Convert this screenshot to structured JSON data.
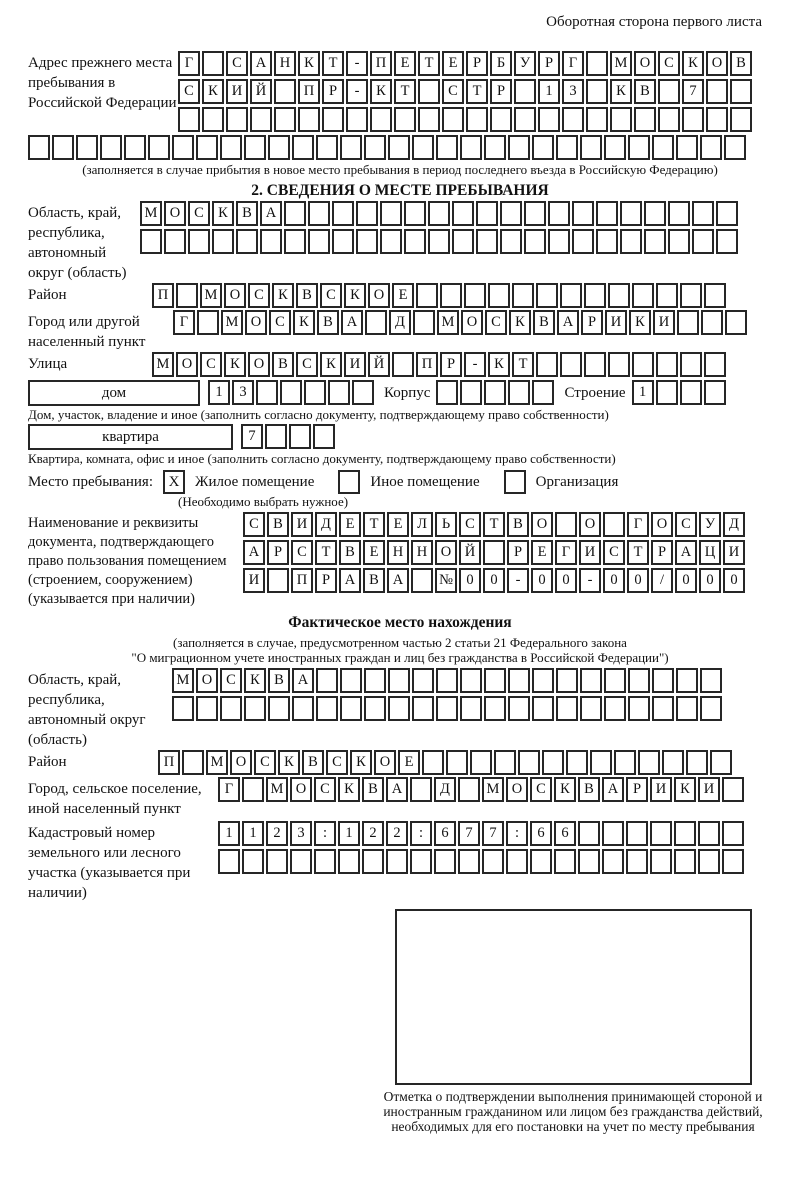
{
  "page": {
    "header_note": "Оборотная сторона первого листа"
  },
  "prev_address": {
    "label": "Адрес прежнего места пребывания в Российской Федерации",
    "rows": [
      {
        "text": "Г САНКТ-ПЕТЕРБУРГ МОСКОВ",
        "len": 24
      },
      {
        "text": "СКИЙ ПР-КТ СТР 13 КВ 7",
        "len": 24
      },
      {
        "text": "",
        "len": 24
      },
      {
        "text": "",
        "len": 30
      }
    ],
    "note": "(заполняется в случае прибытия в новое место пребывания в период последнего въезда в Российскую Федерацию)"
  },
  "section2": {
    "title": "2. СВЕДЕНИЯ О МЕСТЕ ПРЕБЫВАНИЯ",
    "oblast": {
      "label": "Область, край, республика, автономный округ (область)",
      "rows": [
        {
          "text": "МОСКВА",
          "len": 25
        },
        {
          "text": "",
          "len": 25
        }
      ]
    },
    "raion": {
      "label": "Район",
      "row": {
        "text": "П МОСКВСКОЕ",
        "len": 24
      }
    },
    "gorod": {
      "label": "Город или другой населенный пункт",
      "row": {
        "text": "Г МОСКВА Д МОСКВАРИКИ",
        "len": 24
      }
    },
    "ulitsa": {
      "label": "Улица",
      "row": {
        "text": "МОСКОВСКИЙ ПР-КТ",
        "len": 24
      }
    },
    "dom": {
      "box_label": "дом",
      "row": {
        "text": "13",
        "len": 7
      },
      "korpus_label": "Корпус",
      "korpus_row": {
        "text": "",
        "len": 5
      },
      "stroenie_label": "Строение",
      "stroenie_row": {
        "text": "1",
        "len": 4
      },
      "note": "Дом, участок, владение и иное (заполнить согласно документу, подтверждающему право собственности)"
    },
    "kvartira": {
      "box_label": "квартира",
      "row": {
        "text": "7",
        "len": 4
      },
      "note": "Квартира, комната, офис и иное (заполнить согласно документу, подтверждающему право собственности)"
    },
    "mesto": {
      "label": "Место пребывания:",
      "options": [
        {
          "label": "Жилое помещение",
          "mark": "X"
        },
        {
          "label": "Иное помещение",
          "mark": ""
        },
        {
          "label": "Организация",
          "mark": ""
        }
      ],
      "note": "(Необходимо выбрать нужное)"
    },
    "doc": {
      "label": "Наименование и реквизиты документа, подтверждающего право пользования помещением (строением, сооружением) (указывается при наличии)",
      "rows": [
        {
          "text": "СВИДЕТЕЛЬСТВО О ГОСУД",
          "len": 21
        },
        {
          "text": "АРСТВЕННОЙ РЕГИСТРАЦИ",
          "len": 21
        },
        {
          "text": "И ПРАВА №00-00-00/000",
          "len": 21
        }
      ]
    }
  },
  "fact": {
    "title": "Фактическое место нахождения",
    "note1": "(заполняется в случае, предусмотренном частью 2 статьи 21 Федерального закона",
    "note2": "\"О миграционном учете иностранных граждан и лиц без гражданства в Российской Федерации\")",
    "oblast": {
      "label": "Область, край, республика, автономный округ (область)",
      "rows": [
        {
          "text": "МОСКВА",
          "len": 23
        },
        {
          "text": "",
          "len": 23
        }
      ]
    },
    "raion": {
      "label": "Район",
      "row": {
        "text": "П МОСКВСКОЕ",
        "len": 24
      }
    },
    "gorod": {
      "label": "Город, сельское поселение, иной населенный пункт",
      "row": {
        "text": "Г МОСКВА Д МОСКВАРИКИ",
        "len": 22
      }
    },
    "kadastr": {
      "label": "Кадастровый номер земельного или лесного участка (указывается при наличии)",
      "rows": [
        {
          "text": "1123:122:677:66",
          "len": 22
        },
        {
          "text": "",
          "len": 22
        }
      ]
    },
    "confirm_note": "Отметка о подтверждении выполнения принимающей стороной и иностранным гражданином или лицом без гражданства действий, необходимых для его постановки на учет по месту пребывания"
  }
}
